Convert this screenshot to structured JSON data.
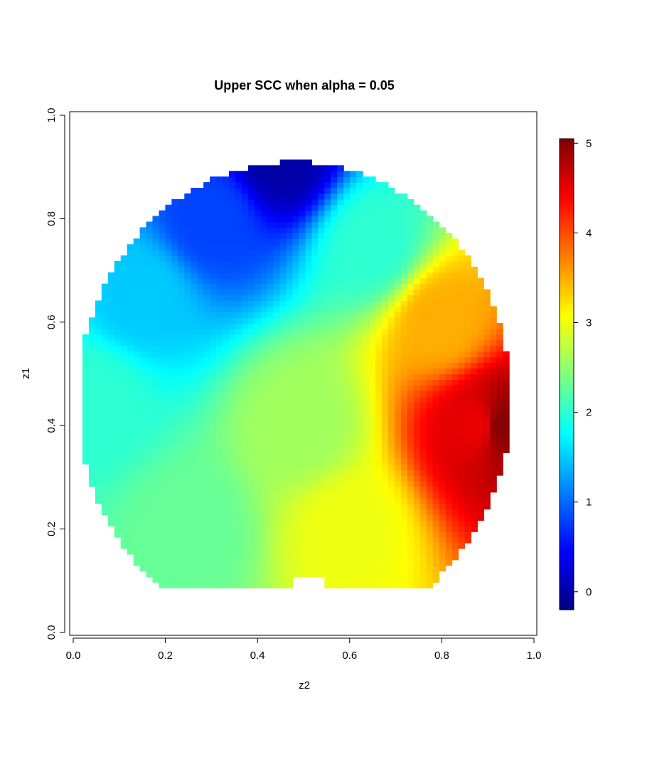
{
  "chart_data": {
    "type": "heatmap",
    "title": "Upper SCC when alpha = 0.05",
    "xlabel": "z2",
    "ylabel": "z1",
    "xlim": [
      0,
      1
    ],
    "ylim": [
      0,
      1
    ],
    "x_ticks": [
      "0.0",
      "0.2",
      "0.4",
      "0.6",
      "0.8",
      "1.0"
    ],
    "y_ticks": [
      "0.0",
      "0.2",
      "0.4",
      "0.6",
      "0.8",
      "1.0"
    ],
    "legend": {
      "placement": "right",
      "range": [
        -0.2,
        5.05
      ],
      "ticks": [
        "0",
        "1",
        "2",
        "3",
        "4",
        "5"
      ],
      "colormap": "jet",
      "colors": [
        "#00007F",
        "#0000FF",
        "#007FFF",
        "#00FFFF",
        "#7FFF7F",
        "#FFFF00",
        "#FF7F00",
        "#FF0000",
        "#7F0000"
      ]
    },
    "surface": {
      "description_values": "approximate field: low (~0) near top-center (z2≈0.45, z1≈0.92), ~2 at left edge, ~3 around z2≈0.6, ~5 near right edge (z2≈0.93, z1≈0.4)",
      "samples": [
        {
          "z2": 0.45,
          "z1": 0.92,
          "value": 0.0
        },
        {
          "z2": 0.3,
          "z1": 0.8,
          "value": 0.8
        },
        {
          "z2": 0.15,
          "z1": 0.65,
          "value": 1.5
        },
        {
          "z2": 0.05,
          "z1": 0.45,
          "value": 2.0
        },
        {
          "z2": 0.25,
          "z1": 0.2,
          "value": 2.3
        },
        {
          "z2": 0.5,
          "z1": 0.4,
          "value": 2.6
        },
        {
          "z2": 0.6,
          "z1": 0.2,
          "value": 3.0
        },
        {
          "z2": 0.65,
          "z1": 0.75,
          "value": 2.0
        },
        {
          "z2": 0.8,
          "z1": 0.6,
          "value": 3.5
        },
        {
          "z2": 0.88,
          "z1": 0.4,
          "value": 4.5
        },
        {
          "z2": 0.93,
          "z1": 0.4,
          "value": 5.0
        }
      ]
    }
  }
}
